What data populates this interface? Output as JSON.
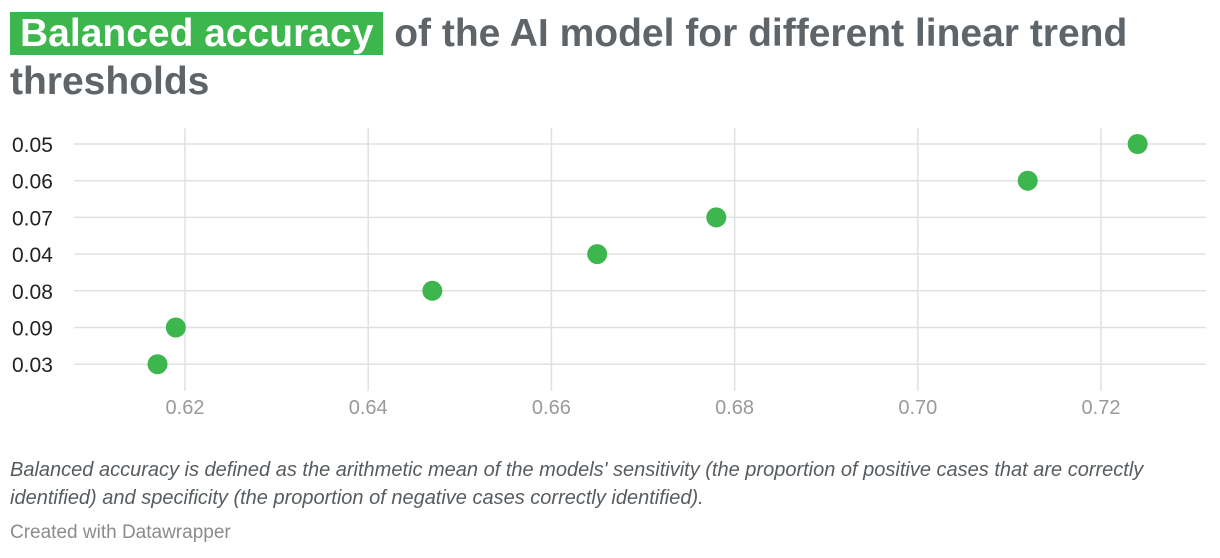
{
  "header": {
    "title_highlight": "Balanced accuracy",
    "title_rest": " of the AI model for different linear trend thresholds"
  },
  "note": "Balanced accuracy is defined as the arithmetic mean of the models' sensitivity (the proportion of positive cases that are correctly identified) and specificity (the proportion of negative cases correctly identified).",
  "credit": "Created with Datawrapper",
  "colors": {
    "accent": "#3db64e",
    "title": "#5f6468",
    "grid": "#e0e0e0",
    "x_tick_label": "#9a9a9a",
    "y_tick_label": "#222222"
  },
  "chart_data": {
    "type": "scatter",
    "title": "Balanced accuracy of the AI model for different linear trend thresholds",
    "xlabel": "",
    "ylabel": "",
    "categories": [
      "0.05",
      "0.06",
      "0.07",
      "0.04",
      "0.08",
      "0.09",
      "0.03"
    ],
    "values": [
      0.724,
      0.712,
      0.678,
      0.665,
      0.647,
      0.619,
      0.617
    ],
    "x_ticks": [
      "0.62",
      "0.64",
      "0.66",
      "0.68",
      "0.70",
      "0.72"
    ],
    "xlim": [
      0.61,
      0.73
    ],
    "grid": true,
    "legend": "none"
  }
}
